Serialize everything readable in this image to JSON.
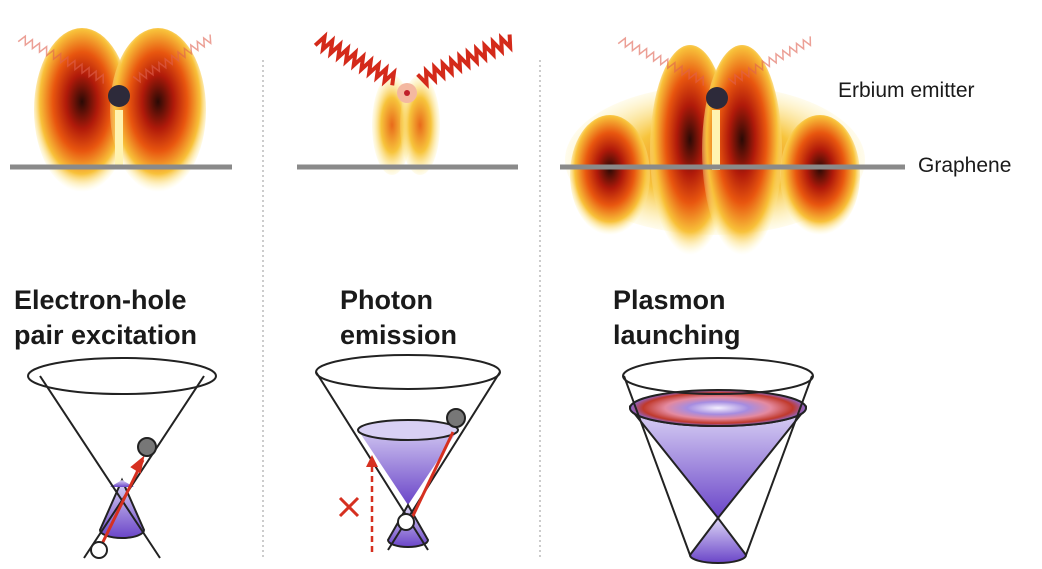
{
  "labels": {
    "emitter": "Erbium emitter",
    "graphene": "Graphene"
  },
  "panels": [
    {
      "title_lines": [
        "Electron-hole",
        "pair excitation"
      ]
    },
    {
      "title_lines": [
        "Photon",
        "emission"
      ]
    },
    {
      "title_lines": [
        "Plasmon",
        "launching"
      ]
    }
  ]
}
